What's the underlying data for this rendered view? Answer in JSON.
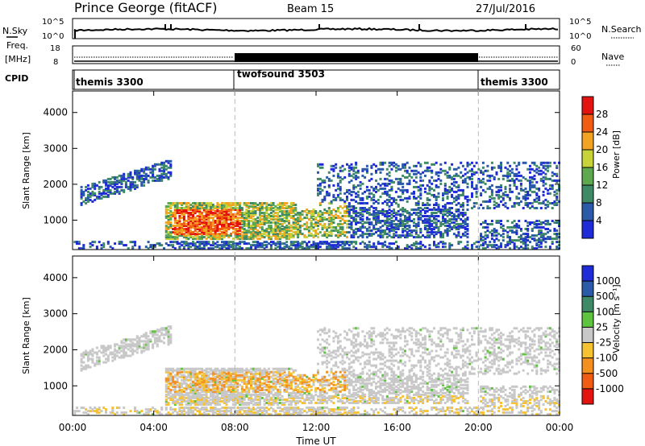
{
  "header": {
    "title": "Prince George (fitACF)",
    "beam": "Beam 15",
    "date": "27/Jul/2016"
  },
  "noise_panel": {
    "left_label": "N.Sky",
    "right_label": "N.Search",
    "ticks": [
      "10^5",
      "10^0"
    ]
  },
  "freq_panel": {
    "left_label_1": "Freq.",
    "left_label_2": "[MHz]",
    "right_label": "Nave",
    "left_ticks": [
      "18",
      "8"
    ],
    "right_ticks": [
      "60",
      "0"
    ]
  },
  "cpid_panel": {
    "label": "CPID",
    "segments": [
      {
        "name": "themis 3300",
        "start": 0,
        "end": 8
      },
      {
        "name": "twofsound 3503",
        "start": 8,
        "end": 20
      },
      {
        "name": "themis 3300",
        "start": 20,
        "end": 24
      }
    ]
  },
  "x_axis": {
    "label": "Time UT",
    "ticks": [
      "00:00",
      "04:00",
      "08:00",
      "12:00",
      "16:00",
      "20:00",
      "00:00"
    ]
  },
  "chart_data": [
    {
      "type": "heatmap",
      "ylabel": "Slant Range [km]",
      "yticks": [
        "1000",
        "2000",
        "3000",
        "4000"
      ],
      "ylim": [
        180,
        4600
      ],
      "xlim_hours": [
        0,
        24
      ],
      "colorbar": {
        "label": "Power [dB]",
        "ticks": [
          "4",
          "8",
          "12",
          "16",
          "20",
          "24",
          "28"
        ],
        "colors": [
          "#1f2bd6",
          "#2a5aa8",
          "#3f8a66",
          "#5ea84f",
          "#c8d33a",
          "#f3a322",
          "#f05c13",
          "#e3130f"
        ]
      }
    },
    {
      "type": "heatmap",
      "ylabel": "Slant Range [km]",
      "yticks": [
        "1000",
        "2000",
        "3000",
        "4000"
      ],
      "ylim": [
        180,
        4600
      ],
      "xlim_hours": [
        0,
        24
      ],
      "colorbar": {
        "label": "Velocity [m s⁻¹]",
        "ticks": [
          "1000",
          "500",
          "100",
          "25",
          "-25",
          "-100",
          "-500",
          "-1000"
        ],
        "colors": [
          "#1f2bd6",
          "#2a5aa8",
          "#3f8a66",
          "#5ec43f",
          "#c8c8c8",
          "#f7c232",
          "#f39020",
          "#f05c13",
          "#e3130f"
        ]
      }
    }
  ]
}
